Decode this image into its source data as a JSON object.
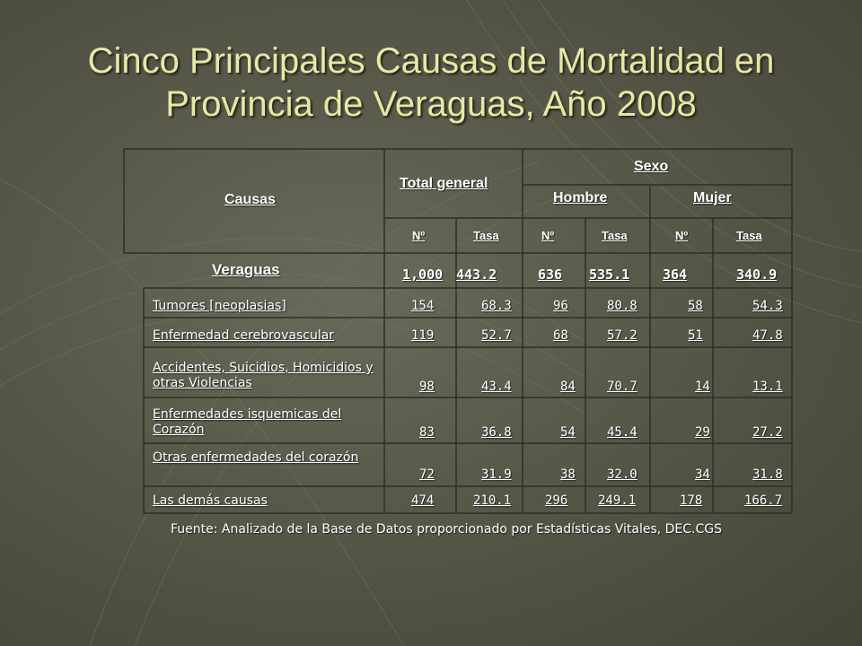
{
  "title": {
    "line1": "Cinco Principales Causas de Mortalidad en",
    "line2": "Provincia de Veraguas, Año 2008"
  },
  "table": {
    "headers": {
      "causas": "Causas",
      "total": "Total general",
      "sexo": "Sexo",
      "hombre": "Hombre",
      "mujer": "Mujer",
      "no": "Nº",
      "tasa": "Tasa"
    },
    "total_row": {
      "label": "Veraguas",
      "values": [
        "1,000",
        "443.2",
        "636",
        "535.1",
        "364",
        "340.9"
      ]
    },
    "rows": [
      {
        "cause": "Tumores [neoplasias]",
        "values": [
          "154",
          "68.3",
          "96",
          "80.8",
          "58",
          "54.3"
        ]
      },
      {
        "cause": "Enfermedad cerebrovascular",
        "values": [
          "119",
          "52.7",
          "68",
          "57.2",
          "51",
          "47.8"
        ]
      },
      {
        "cause": "Accidentes, Suicidios, Homicidios y otras Violencias",
        "values": [
          "98",
          "43.4",
          "84",
          "70.7",
          "14",
          "13.1"
        ]
      },
      {
        "cause": "Enfermedades isquemicas del Corazón",
        "values": [
          "83",
          "36.8",
          "54",
          "45.4",
          "29",
          "27.2"
        ]
      },
      {
        "cause": "Otras enfermedades del corazón",
        "values": [
          "72",
          "31.9",
          "38",
          "32.0",
          "34",
          "31.8"
        ]
      },
      {
        "cause": "Las demás causas",
        "values": [
          "474",
          "210.1",
          "296",
          "249.1",
          "178",
          "166.7"
        ]
      }
    ]
  },
  "source": "Fuente: Analizado de la Base de Datos proporcionado por Estadísticas Vitales,   DEC.CGS"
}
